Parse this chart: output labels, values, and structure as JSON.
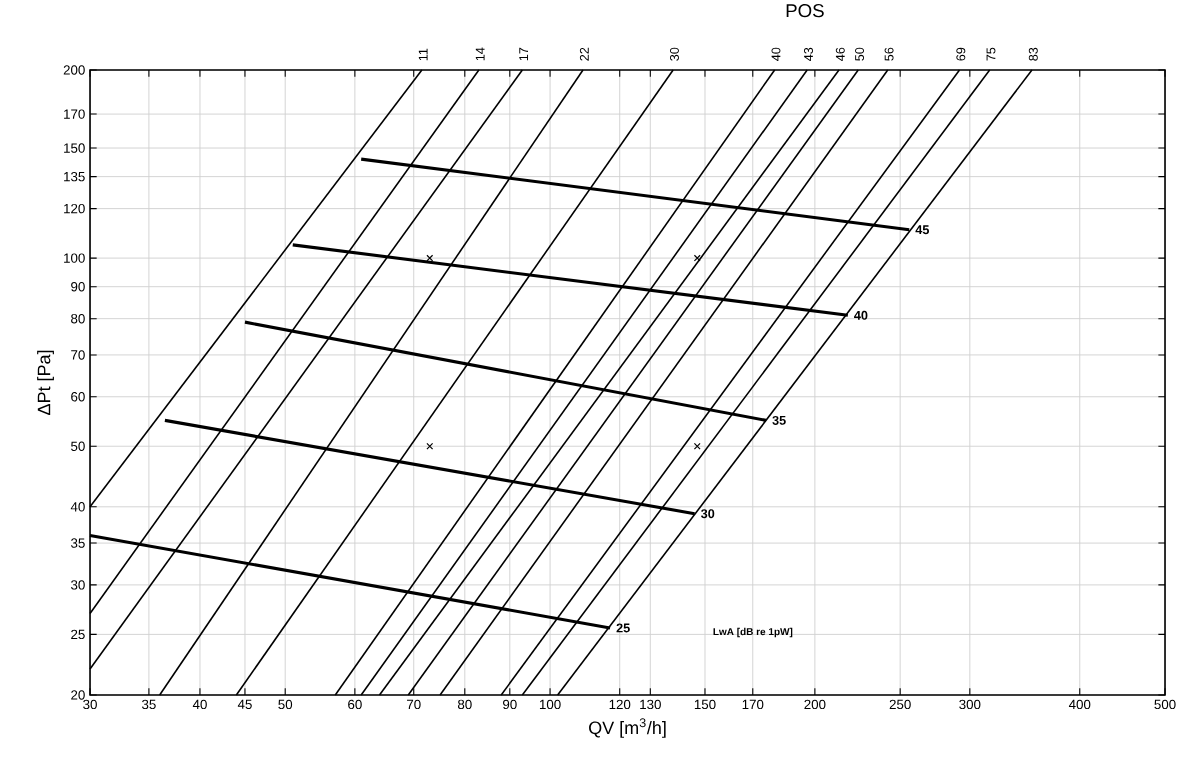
{
  "chart_data": {
    "type": "line",
    "xlabel": "QV [m$^{3}$/h]",
    "ylabel": "ΔPt [Pa]",
    "annotations": [
      "POS",
      "LwA [dB re 1pW]"
    ],
    "log": "xy",
    "grid": true,
    "xlim": [
      30,
      500
    ],
    "xticks": [
      30,
      35,
      40,
      45,
      50,
      60,
      70,
      80,
      90,
      100,
      120,
      130,
      150,
      170,
      200,
      250,
      300,
      400,
      500
    ],
    "ylim": [
      20,
      200
    ],
    "yticks": [
      20,
      25,
      30,
      35,
      40,
      50,
      60,
      70,
      80,
      90,
      100,
      120,
      135,
      150,
      170,
      200
    ],
    "series": [
      {
        "name": "11",
        "color": "#000000",
        "x": [
          30,
          71.5
        ],
        "values": [
          40,
          200
        ]
      },
      {
        "name": "14",
        "color": "#000000",
        "x": [
          30,
          83
        ],
        "values": [
          27,
          200
        ]
      },
      {
        "name": "17",
        "color": "#000000",
        "x": [
          30,
          93
        ],
        "values": [
          22,
          200
        ]
      },
      {
        "name": "22",
        "color": "#000000",
        "x": [
          36,
          109
        ],
        "values": [
          20,
          200
        ]
      },
      {
        "name": "30",
        "color": "#000000",
        "x": [
          44,
          138
        ],
        "values": [
          20,
          200
        ]
      },
      {
        "name": "40",
        "color": "#000000",
        "x": [
          57,
          180
        ],
        "values": [
          20,
          200
        ]
      },
      {
        "name": "43",
        "color": "#000000",
        "x": [
          61,
          196
        ],
        "values": [
          20,
          200
        ]
      },
      {
        "name": "46",
        "color": "#000000",
        "x": [
          64,
          213
        ],
        "values": [
          20,
          200
        ]
      },
      {
        "name": "50",
        "color": "#000000",
        "x": [
          69,
          224
        ],
        "values": [
          20,
          200
        ]
      },
      {
        "name": "56",
        "color": "#000000",
        "x": [
          75,
          242
        ],
        "values": [
          20,
          200
        ]
      },
      {
        "name": "69",
        "color": "#000000",
        "x": [
          88,
          292
        ],
        "values": [
          20,
          200
        ]
      },
      {
        "name": "75",
        "color": "#000000",
        "x": [
          93,
          316
        ],
        "values": [
          20,
          200
        ]
      },
      {
        "name": "83",
        "color": "#000000",
        "x": [
          102,
          353
        ],
        "values": [
          20,
          200
        ]
      },
      {
        "name": "25",
        "color": "#000000",
        "x": [
          30,
          117
        ],
        "values": [
          36,
          25.6
        ]
      },
      {
        "name": "30",
        "color": "#000000",
        "x": [
          36.5,
          146
        ],
        "values": [
          55,
          39
        ]
      },
      {
        "name": "35",
        "color": "#000000",
        "x": [
          45,
          176
        ],
        "values": [
          79,
          55
        ]
      },
      {
        "name": "40",
        "color": "#000000",
        "x": [
          51,
          218
        ],
        "values": [
          105,
          81
        ]
      },
      {
        "name": "45",
        "color": "#000000",
        "x": [
          61,
          256
        ],
        "values": [
          144,
          111
        ]
      },
      {
        "type": "scatter",
        "marker": "cross",
        "color": "#000000",
        "x": [
          73,
          147,
          73,
          147
        ],
        "values": [
          100,
          100,
          50,
          50
        ]
      }
    ]
  }
}
